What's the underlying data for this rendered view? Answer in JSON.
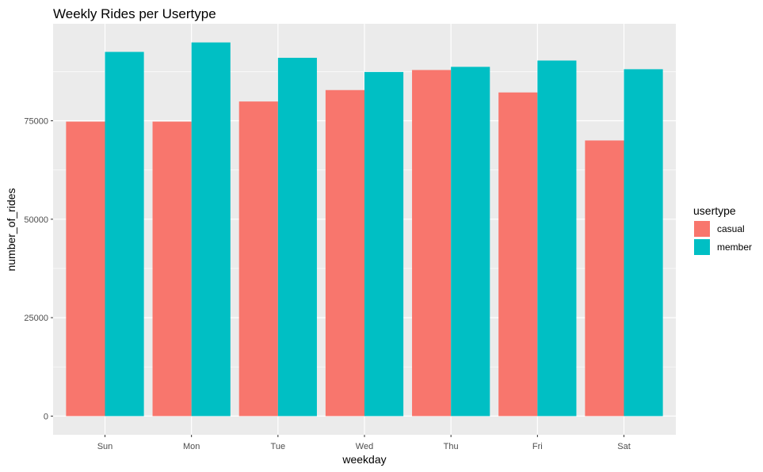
{
  "chart_data": {
    "type": "bar",
    "title": "Weekly Rides per Usertype",
    "xlabel": "weekday",
    "ylabel": "number_of_rides",
    "categories": [
      "Sun",
      "Mon",
      "Tue",
      "Wed",
      "Thu",
      "Fri",
      "Sat"
    ],
    "series": [
      {
        "name": "casual",
        "color": "#F8766D",
        "values": [
          74800,
          74800,
          79900,
          82800,
          87900,
          82200,
          70000
        ]
      },
      {
        "name": "member",
        "color": "#00BFC4",
        "values": [
          92500,
          94900,
          91000,
          87400,
          88700,
          90300,
          88100
        ]
      }
    ],
    "yticks": [
      0,
      25000,
      50000,
      75000
    ],
    "ylim": [
      -4745,
      99645
    ],
    "legend": {
      "title": "usertype",
      "position": "right"
    },
    "grid": true,
    "panel_background": "#EBEBEB"
  }
}
